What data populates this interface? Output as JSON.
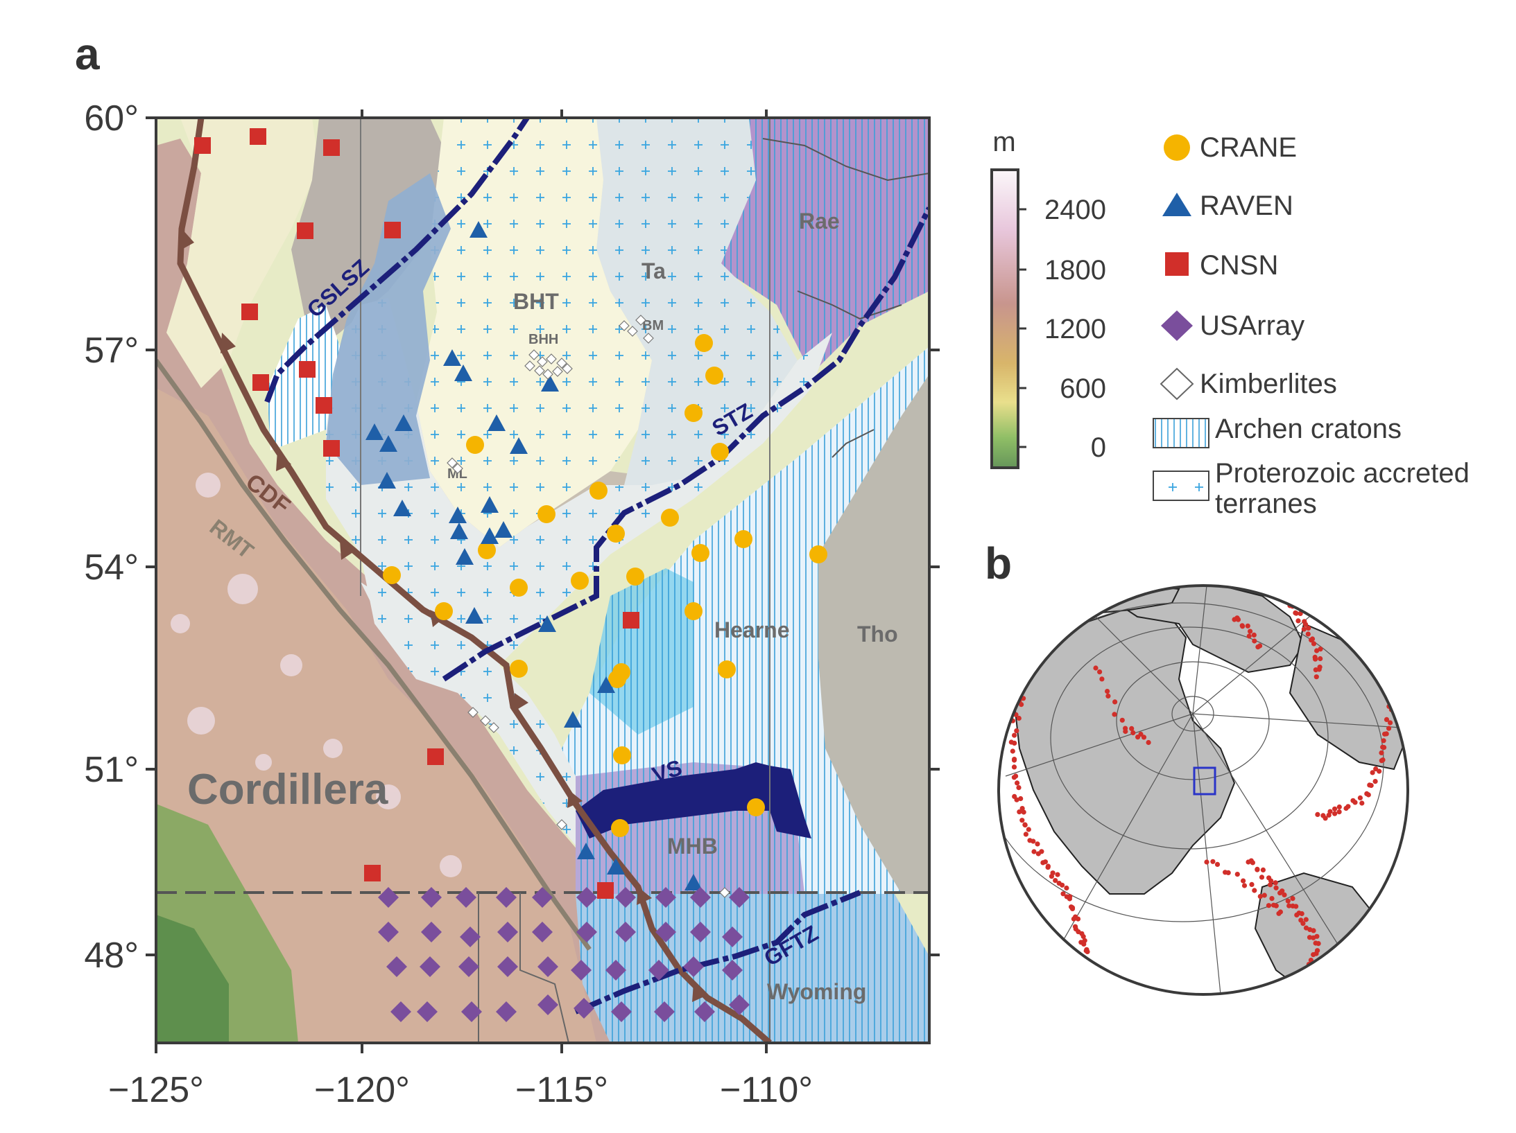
{
  "panel_a": {
    "letter": "a",
    "x_ticks": [
      "−125°",
      "−120°",
      "−115°",
      "−110°"
    ],
    "y_ticks": [
      "60°",
      "57°",
      "54°",
      "51°",
      "48°"
    ],
    "regions": {
      "cordillera": "Cordillera",
      "bht": "BHT",
      "ta": "Ta",
      "rae": "Rae",
      "hearne": "Hearne",
      "tho": "Tho",
      "mhb": "MHB",
      "wyoming": "Wyoming",
      "bhh": "BHH",
      "bm": "BM",
      "ml": "ML"
    },
    "faults": {
      "gslsz": "GSLSZ",
      "stz": "STZ",
      "cdf": "CDF",
      "rmt": "RMT",
      "vs": "VS",
      "gftz": "GFTZ"
    }
  },
  "colorbar": {
    "unit": "m",
    "ticks": [
      "2400",
      "1800",
      "1200",
      "600",
      "0"
    ],
    "colors": [
      "#fbf7fa",
      "#e8c7dc",
      "#c8958d",
      "#d8b56a",
      "#e9df8c",
      "#8fbe66",
      "#66965a"
    ]
  },
  "legend": {
    "crane": "CRANE",
    "raven": "RAVEN",
    "cnsn": "CNSN",
    "usarray": "USArray",
    "kimberlites": "Kimberlites",
    "archean": "Archen cratons",
    "proterozoic_1": "Proterozoic accreted",
    "proterozoic_2": "terranes"
  },
  "colors": {
    "crane": "#f5b400",
    "raven": "#1f5fa8",
    "cnsn": "#d12f2a",
    "usarray": "#7a4e9c",
    "fault_navy": "#1c1f7a",
    "cdf_brown": "#7b4f42",
    "earthquakes": "#d12f2a"
  },
  "panel_b": {
    "letter": "b"
  }
}
